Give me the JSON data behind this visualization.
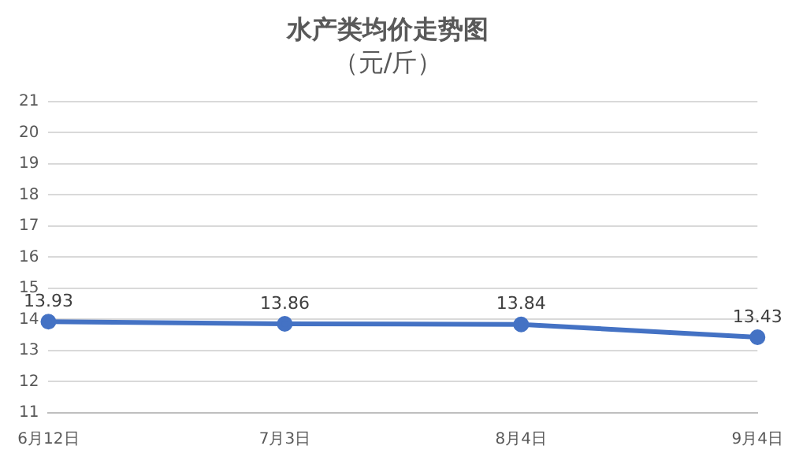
{
  "chart_data": {
    "type": "line",
    "title": "水产类均价走势图",
    "subtitle": "（元/斤）",
    "categories": [
      "6月12日",
      "7月3日",
      "8月4日",
      "9月4日"
    ],
    "series": [
      {
        "color": "#4472c4",
        "values": [
          13.93,
          13.86,
          13.84,
          13.43
        ]
      }
    ],
    "ylim": [
      11,
      21
    ],
    "yticks": [
      11,
      12,
      13,
      14,
      15,
      16,
      17,
      18,
      19,
      20,
      21
    ],
    "grid": "y",
    "marker": "circle",
    "line_style": "solid",
    "data_labels": true,
    "legend": false
  }
}
